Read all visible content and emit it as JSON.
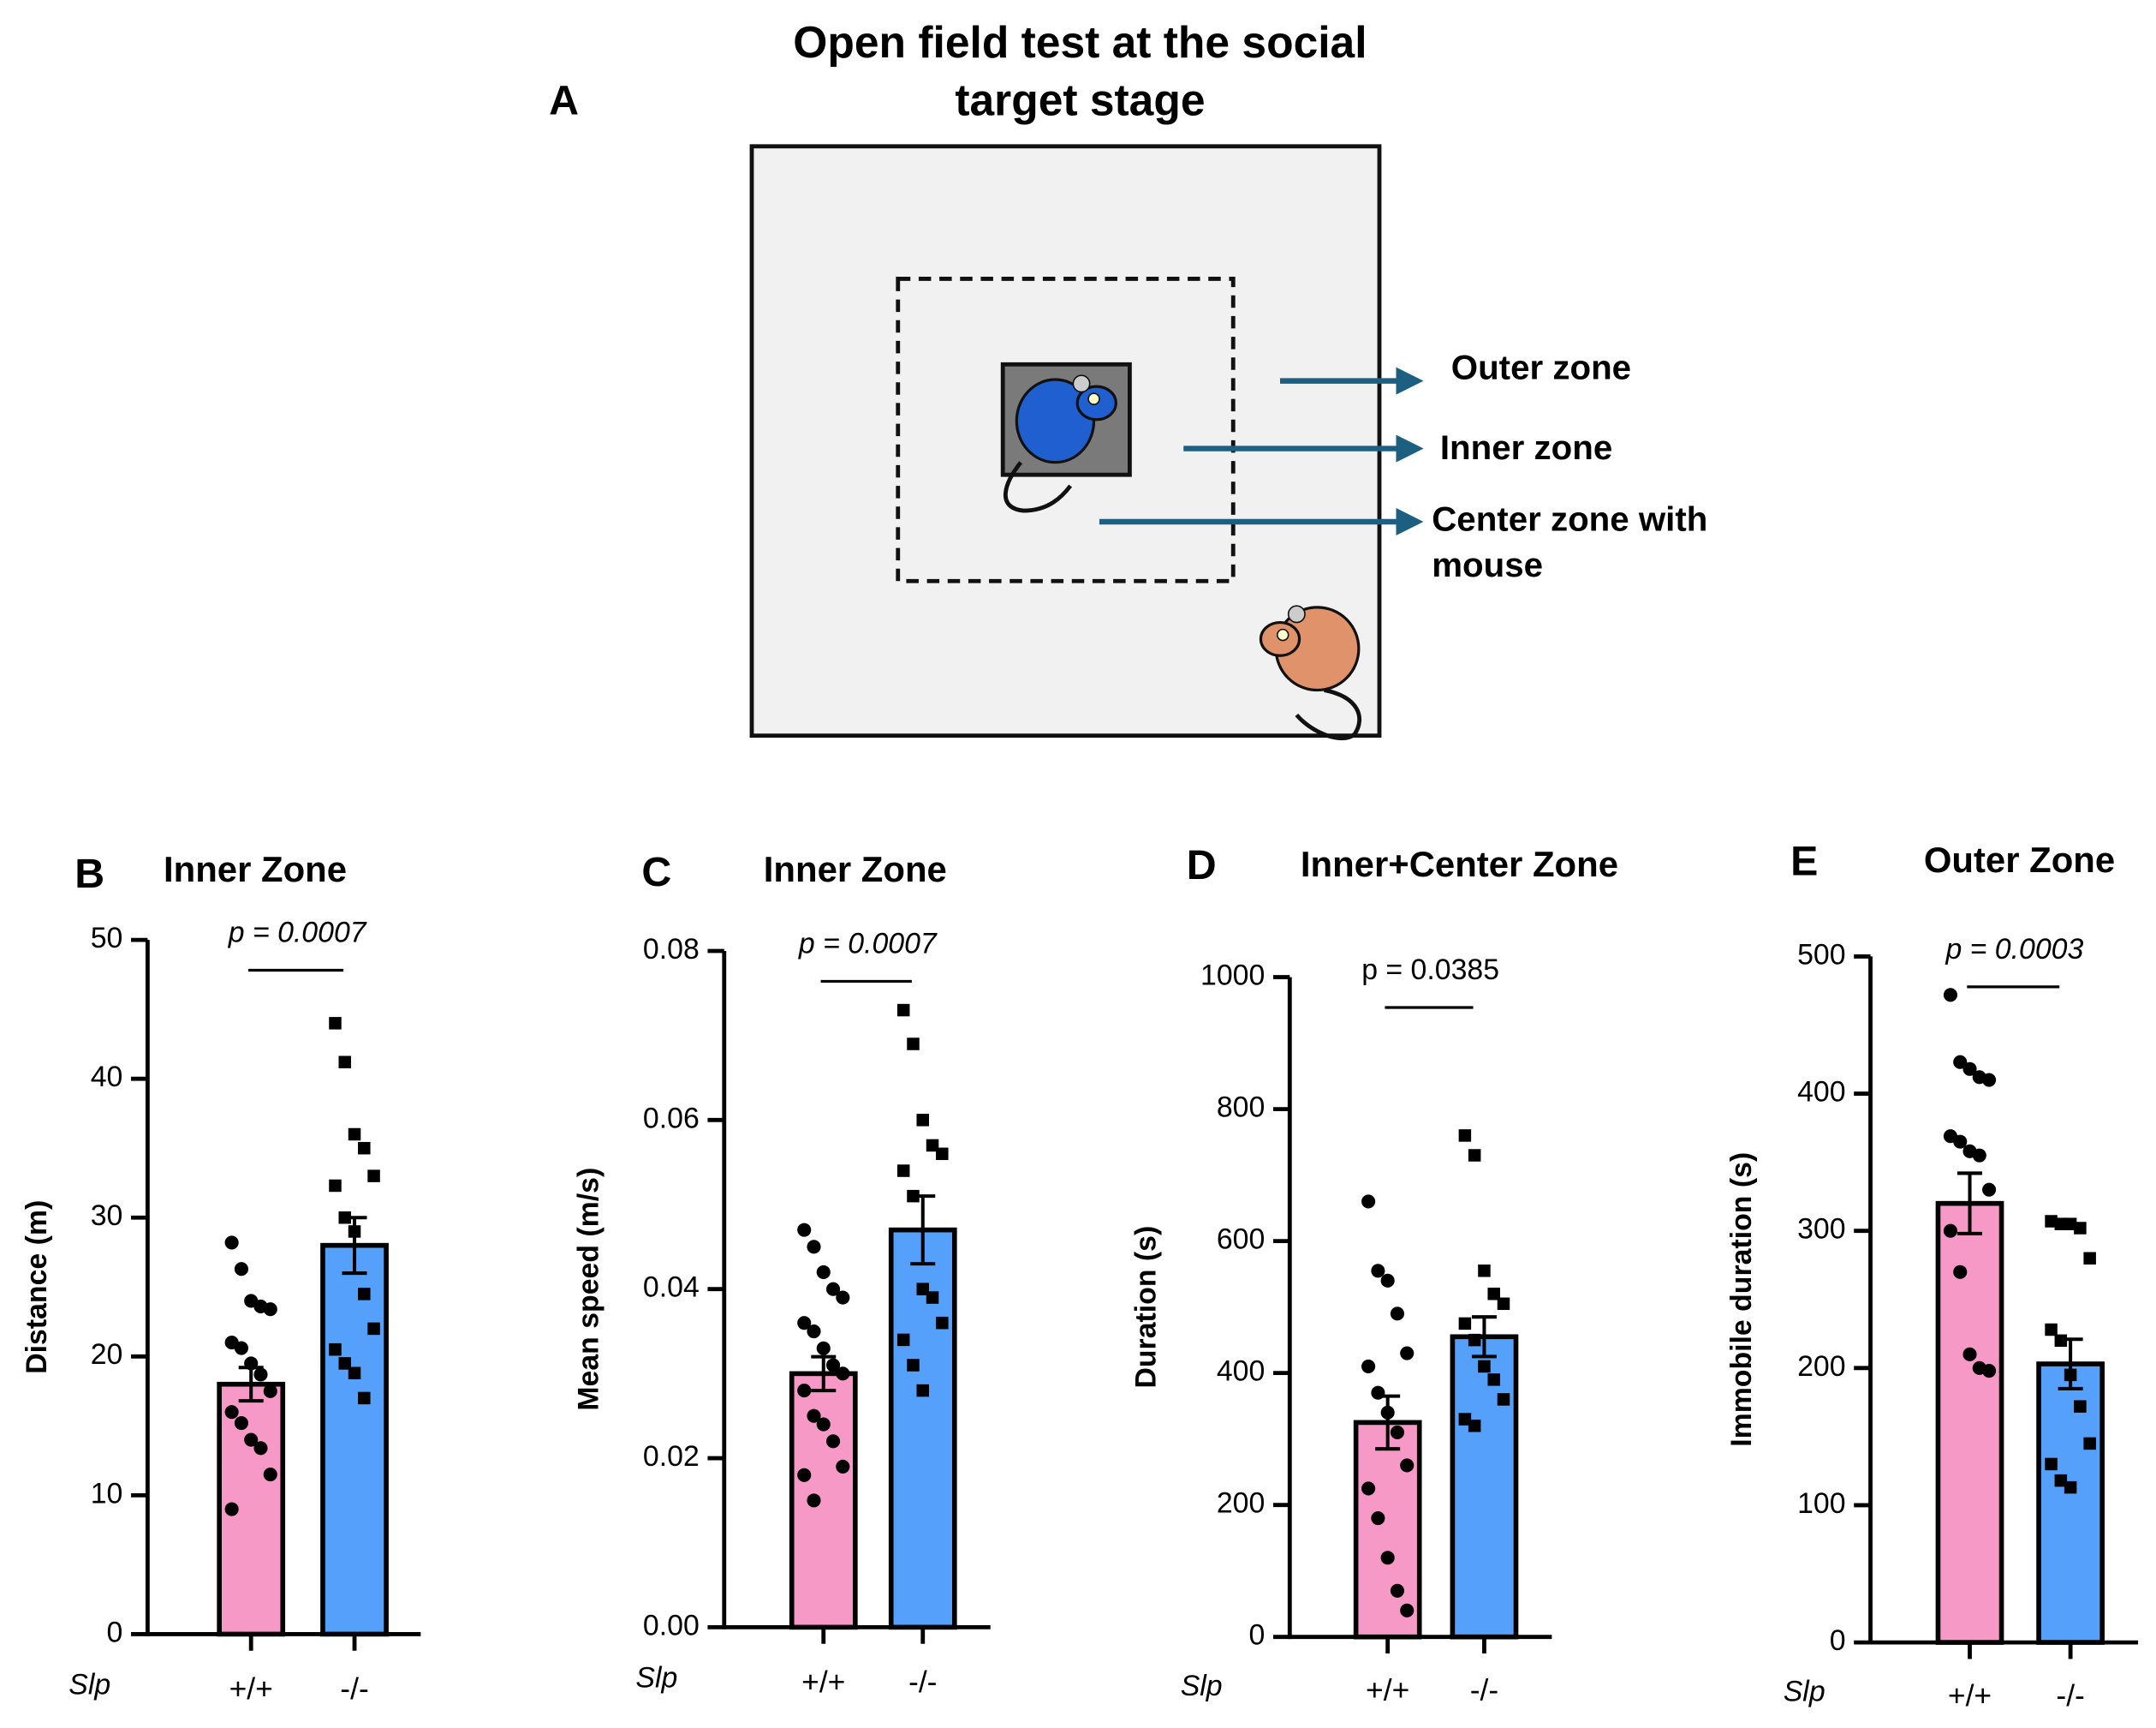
{
  "panel_a": {
    "panel": "A",
    "title_lines": [
      "Open field test at the social",
      "target stage"
    ],
    "zone_labels": [
      [
        "Outer zone"
      ],
      [
        "Inner zone"
      ],
      [
        "Center zone with",
        "mouse"
      ]
    ]
  },
  "chart_data": [
    {
      "type": "bar",
      "panel": "B",
      "title": "Inner Zone",
      "ylabel": "Distance (m)",
      "group_label": "Slp",
      "categories": [
        "+/+",
        "-/-"
      ],
      "values": [
        18,
        28
      ],
      "errors": [
        1.2,
        2.0
      ],
      "colors": [
        "#f799c6",
        "#54a0fa"
      ],
      "markers": [
        "circle",
        "square"
      ],
      "points": [
        [
          28.2,
          26.3,
          24,
          23.6,
          23.4,
          21,
          20.6,
          19.5,
          18.7,
          17.5,
          16,
          15.2,
          14,
          13.4,
          11.5,
          9
        ],
        [
          44,
          41.2,
          36,
          35,
          33,
          32.3,
          30,
          29,
          24.5,
          22,
          20.5,
          19.5,
          18.8,
          17
        ]
      ],
      "ylim": [
        0,
        50
      ],
      "yticks": [
        0,
        10,
        20,
        30,
        40,
        50
      ],
      "annotation": "p = 0.0007",
      "annotation_style": "italic"
    },
    {
      "type": "bar",
      "panel": "C",
      "title": "Inner Zone",
      "ylabel": "Mean speed (m/s)",
      "group_label": "Slp",
      "categories": [
        "+/+",
        "-/-"
      ],
      "values": [
        0.03,
        0.047
      ],
      "errors": [
        0.002,
        0.004
      ],
      "colors": [
        "#f799c6",
        "#54a0fa"
      ],
      "markers": [
        "circle",
        "square"
      ],
      "points": [
        [
          0.047,
          0.045,
          0.042,
          0.04,
          0.039,
          0.036,
          0.035,
          0.033,
          0.031,
          0.03,
          0.028,
          0.025,
          0.024,
          0.022,
          0.019,
          0.018,
          0.015
        ],
        [
          0.073,
          0.069,
          0.06,
          0.057,
          0.056,
          0.054,
          0.051,
          0.04,
          0.039,
          0.036,
          0.034,
          0.031,
          0.028
        ]
      ],
      "ylim": [
        0,
        0.08
      ],
      "yticks": [
        {
          "value": 0,
          "label": "0.00"
        },
        0.02,
        0.04,
        0.06,
        0.08
      ],
      "annotation": "p = 0.0007",
      "annotation_style": "italic"
    },
    {
      "type": "bar",
      "panel": "D",
      "title": "Inner+Center Zone",
      "ylabel": "Duration (s)",
      "group_label": "Slp",
      "categories": [
        "+/+",
        "-/-"
      ],
      "values": [
        325,
        455
      ],
      "errors": [
        40,
        30
      ],
      "colors": [
        "#f799c6",
        "#54a0fa"
      ],
      "markers": [
        "circle",
        "square"
      ],
      "points": [
        [
          660,
          555,
          540,
          490,
          430,
          410,
          370,
          340,
          310,
          260,
          225,
          180,
          120,
          70,
          40
        ],
        [
          760,
          730,
          555,
          520,
          505,
          475,
          450,
          410,
          390,
          360,
          330,
          320
        ]
      ],
      "ylim": [
        0,
        1000
      ],
      "yticks": [
        0,
        200,
        400,
        600,
        800,
        1000
      ],
      "annotation": "p = 0.0385",
      "annotation_style": "normal"
    },
    {
      "type": "bar",
      "panel": "E",
      "title": "Outer Zone",
      "ylabel": "Immobile duration (s)",
      "group_label": "Slp",
      "categories": [
        "+/+",
        "-/-"
      ],
      "values": [
        320,
        203
      ],
      "errors": [
        22,
        18
      ],
      "colors": [
        "#f799c6",
        "#54a0fa"
      ],
      "markers": [
        "circle",
        "square"
      ],
      "points": [
        [
          472,
          423,
          418,
          412,
          410,
          369,
          365,
          358,
          355,
          330,
          300,
          270,
          210,
          200,
          198
        ],
        [
          307,
          305,
          305,
          302,
          280,
          228,
          220,
          195,
          172,
          145,
          130,
          118,
          113
        ]
      ],
      "ylim": [
        0,
        500
      ],
      "yticks": [
        0,
        100,
        200,
        300,
        400,
        500
      ],
      "annotation": "p = 0.0003",
      "annotation_style": "italic"
    }
  ]
}
